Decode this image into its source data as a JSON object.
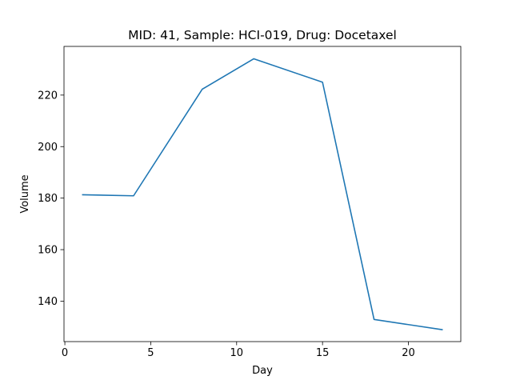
{
  "chart_data": {
    "type": "line",
    "title": "MID: 41, Sample: HCI-019, Drug: Docetaxel",
    "xlabel": "Day",
    "ylabel": "Volume",
    "xlim": [
      -0.05,
      23.05
    ],
    "ylim": [
      124.3,
      238.9
    ],
    "xticks": [
      0,
      5,
      10,
      15,
      20
    ],
    "xtick_labels": [
      "0",
      "5",
      "10",
      "15",
      "20"
    ],
    "yticks": [
      140,
      160,
      180,
      200,
      220
    ],
    "ytick_labels": [
      "140",
      "160",
      "180",
      "200",
      "220"
    ],
    "grid": false,
    "legend": "none",
    "series": [
      {
        "color": "#1f77b4",
        "x": [
          1,
          4,
          8,
          11,
          15,
          18,
          22
        ],
        "y": [
          181.3,
          180.9,
          222.3,
          234.1,
          225.0,
          132.9,
          128.9
        ]
      }
    ]
  }
}
